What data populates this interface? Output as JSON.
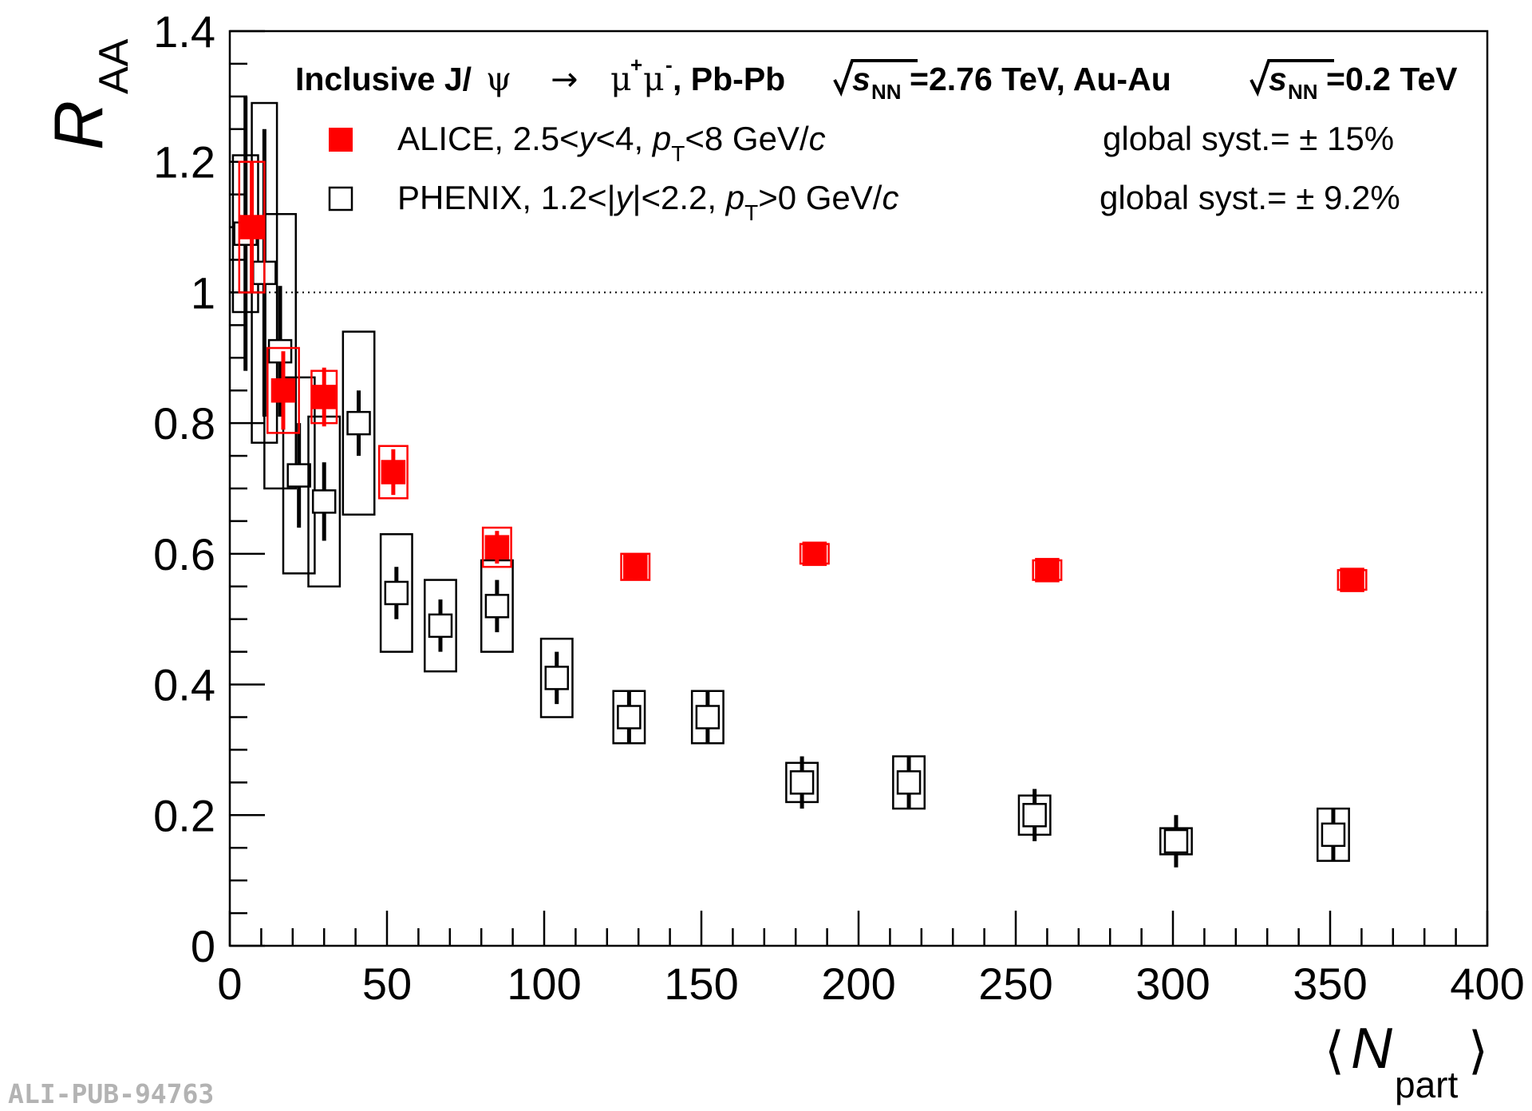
{
  "chart_data": {
    "type": "scatter",
    "title": "Inclusive J/ψ → μ⁺μ⁻, Pb-Pb √sNN=2.76 TeV, Au-Au √sNN=0.2 TeV",
    "title_parts": {
      "prefix": "Inclusive J/",
      "psi": "ψ",
      "arrow": "→",
      "mu": "μ",
      "plus": "+",
      "minus": "-",
      "system1": ", Pb-Pb",
      "s": "s",
      "nn": "NN",
      "energy1": "=2.76 TeV, Au-Au",
      "energy2": "=0.2 TeV"
    },
    "ylabel": {
      "main": "R",
      "sub": "AA"
    },
    "xlabel": {
      "open": "⟨",
      "main": "N",
      "sub": "part",
      "close": "⟩"
    },
    "xlim": [
      0,
      400
    ],
    "ylim": [
      0,
      1.4
    ],
    "x_ticks": [
      {
        "value": 0,
        "label": "0"
      },
      {
        "value": 50,
        "label": "50"
      },
      {
        "value": 100,
        "label": "100"
      },
      {
        "value": 150,
        "label": "150"
      },
      {
        "value": 200,
        "label": "200"
      },
      {
        "value": 250,
        "label": "250"
      },
      {
        "value": 300,
        "label": "300"
      },
      {
        "value": 350,
        "label": "350"
      },
      {
        "value": 400,
        "label": "400"
      }
    ],
    "y_ticks": [
      {
        "value": 0,
        "label": "0"
      },
      {
        "value": 0.2,
        "label": "0.2"
      },
      {
        "value": 0.4,
        "label": "0.4"
      },
      {
        "value": 0.6,
        "label": "0.6"
      },
      {
        "value": 0.8,
        "label": "0.8"
      },
      {
        "value": 1.0,
        "label": "1"
      },
      {
        "value": 1.2,
        "label": "1.2"
      },
      {
        "value": 1.4,
        "label": "1.4"
      }
    ],
    "x_minor_step": 10,
    "y_minor_step": 0.05,
    "reference_line": {
      "y": 1.0,
      "style": "dotted"
    },
    "legend": [
      {
        "series": "ALICE",
        "parts": [
          "ALICE, 2.5<",
          "y",
          "<4, ",
          "p",
          "T",
          "<8 GeV/",
          "c"
        ],
        "syst": "global syst.= ± 15%"
      },
      {
        "series": "PHENIX",
        "parts": [
          "PHENIX, 1.2<|",
          "y",
          "|<2.2, ",
          "p",
          "T",
          ">0 GeV/",
          "c"
        ],
        "syst": "global syst.= ± 9.2%"
      }
    ],
    "series": [
      {
        "name": "ALICE",
        "marker": "filled-square",
        "color": "#ff0000",
        "points": [
          {
            "x": 7,
            "y": 1.1,
            "stat": 0.1,
            "sys": 0.1,
            "xsys": 4
          },
          {
            "x": 17,
            "y": 0.85,
            "stat": 0.06,
            "sys": 0.065,
            "xsys": 5
          },
          {
            "x": 30,
            "y": 0.84,
            "stat": 0.045,
            "sys": 0.04,
            "xsys": 4
          },
          {
            "x": 52,
            "y": 0.725,
            "stat": 0.035,
            "sys": 0.04,
            "xsys": 4.5
          },
          {
            "x": 85,
            "y": 0.61,
            "stat": 0.025,
            "sys": 0.03,
            "xsys": 4.5
          },
          {
            "x": 129,
            "y": 0.58,
            "stat": 0.02,
            "sys": 0.02,
            "xsys": 4.5
          },
          {
            "x": 186,
            "y": 0.6,
            "stat": 0.015,
            "sys": 0.015,
            "xsys": 4.5
          },
          {
            "x": 260,
            "y": 0.575,
            "stat": 0.012,
            "sys": 0.015,
            "xsys": 4.5
          },
          {
            "x": 357,
            "y": 0.56,
            "stat": 0.012,
            "sys": 0.015,
            "xsys": 4.5
          }
        ]
      },
      {
        "name": "PHENIX",
        "marker": "open-square",
        "color": "#000000",
        "points": [
          {
            "x": 5,
            "y": 1.09,
            "stat": 0.21,
            "sys": 0.12,
            "xsys": 4
          },
          {
            "x": 11,
            "y": 1.03,
            "stat": 0.22,
            "sys": 0.26,
            "xsys": 4
          },
          {
            "x": 16,
            "y": 0.91,
            "stat": 0.1,
            "sys": 0.21,
            "xsys": 5
          },
          {
            "x": 22,
            "y": 0.72,
            "stat": 0.08,
            "sys": 0.15,
            "xsys": 5
          },
          {
            "x": 30,
            "y": 0.68,
            "stat": 0.06,
            "sys": 0.13,
            "xsys": 5
          },
          {
            "x": 41,
            "y": 0.8,
            "stat": 0.05,
            "sys": 0.14,
            "xsys": 5
          },
          {
            "x": 53,
            "y": 0.54,
            "stat": 0.04,
            "sys": 0.09,
            "xsys": 5
          },
          {
            "x": 67,
            "y": 0.49,
            "stat": 0.04,
            "sys": 0.07,
            "xsys": 5
          },
          {
            "x": 85,
            "y": 0.52,
            "stat": 0.04,
            "sys": 0.07,
            "xsys": 5
          },
          {
            "x": 104,
            "y": 0.41,
            "stat": 0.04,
            "sys": 0.06,
            "xsys": 5
          },
          {
            "x": 127,
            "y": 0.35,
            "stat": 0.04,
            "sys": 0.04,
            "xsys": 5
          },
          {
            "x": 152,
            "y": 0.35,
            "stat": 0.04,
            "sys": 0.04,
            "xsys": 5
          },
          {
            "x": 182,
            "y": 0.25,
            "stat": 0.04,
            "sys": 0.03,
            "xsys": 5
          },
          {
            "x": 216,
            "y": 0.25,
            "stat": 0.04,
            "sys": 0.04,
            "xsys": 5
          },
          {
            "x": 256,
            "y": 0.2,
            "stat": 0.04,
            "sys": 0.03,
            "xsys": 5
          },
          {
            "x": 301,
            "y": 0.16,
            "stat": 0.04,
            "sys": 0.02,
            "xsys": 5
          },
          {
            "x": 351,
            "y": 0.17,
            "stat": 0.04,
            "sys": 0.04,
            "xsys": 5
          }
        ]
      }
    ]
  },
  "footer": {
    "label_id": "ALI-PUB-94763"
  }
}
